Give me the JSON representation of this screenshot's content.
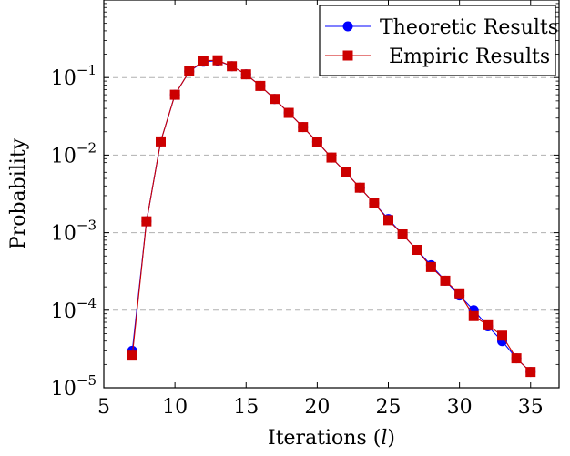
{
  "chart_data": {
    "type": "line",
    "title": "",
    "xlabel": "Iterations (",
    "xlabel_var": "l",
    "xlabel_suffix": ")",
    "ylabel": "Probability",
    "xlim": [
      5,
      37
    ],
    "ylim": [
      1e-05,
      1
    ],
    "yscale": "log",
    "grid": "horizontal-dashed",
    "legend": "top-right",
    "x_ticks": [
      5,
      10,
      15,
      20,
      25,
      30,
      35
    ],
    "y_ticks": [
      {
        "value": 1e-05,
        "base": "10",
        "exp": "−5"
      },
      {
        "value": 0.0001,
        "base": "10",
        "exp": "−4"
      },
      {
        "value": 0.001,
        "base": "10",
        "exp": "−3"
      },
      {
        "value": 0.01,
        "base": "10",
        "exp": "−2"
      },
      {
        "value": 0.1,
        "base": "10",
        "exp": "−1"
      }
    ],
    "x": [
      7,
      8,
      9,
      10,
      11,
      12,
      13,
      14,
      15,
      16,
      17,
      18,
      19,
      20,
      21,
      22,
      23,
      24,
      25,
      26,
      27,
      28,
      29,
      30,
      31,
      32,
      33,
      34,
      35
    ],
    "series": [
      {
        "name": "Theoretic Results",
        "color": "#0000ff",
        "marker": "circle",
        "values": [
          3e-05,
          0.0014,
          0.015,
          0.06,
          0.12,
          0.16,
          0.165,
          0.14,
          0.11,
          0.078,
          0.053,
          0.035,
          0.023,
          0.0148,
          0.0093,
          0.006,
          0.0038,
          0.0024,
          0.0015,
          0.00095,
          0.0006,
          0.00038,
          0.00024,
          0.000155,
          0.0001,
          6.2e-05,
          4e-05,
          2.4e-05,
          1.6e-05
        ]
      },
      {
        "name": "Empiric Results",
        "color": "#cc0000",
        "marker": "square",
        "values": [
          2.6e-05,
          0.0014,
          0.015,
          0.06,
          0.12,
          0.165,
          0.167,
          0.14,
          0.11,
          0.078,
          0.053,
          0.035,
          0.023,
          0.0148,
          0.0093,
          0.006,
          0.0038,
          0.0024,
          0.00145,
          0.00095,
          0.0006,
          0.00036,
          0.00024,
          0.000165,
          8.4e-05,
          6.4e-05,
          4.7e-05,
          2.4e-05,
          1.6e-05
        ]
      }
    ]
  }
}
